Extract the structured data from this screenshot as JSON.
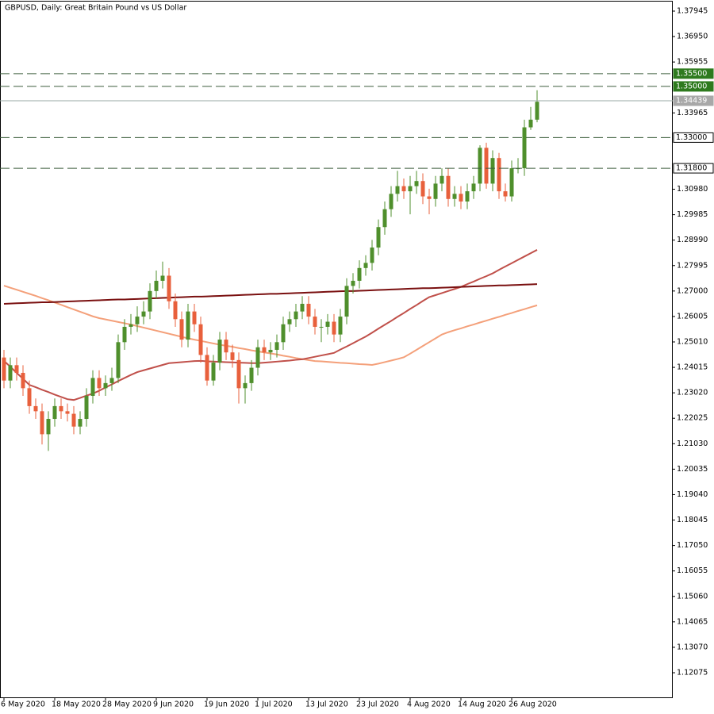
{
  "chart_data": {
    "type": "candlestick",
    "title": "GBPUSD, Daily:  Great Britain Pound vs US Dollar",
    "categories": [
      "6 May 2020",
      null,
      null,
      null,
      null,
      null,
      null,
      null,
      "18 May 2020",
      null,
      null,
      null,
      null,
      null,
      null,
      null,
      "28 May 2020",
      null,
      null,
      null,
      null,
      null,
      null,
      null,
      "9 Jun 2020",
      null,
      null,
      null,
      null,
      null,
      null,
      null,
      "19 Jun 2020",
      null,
      null,
      null,
      null,
      null,
      null,
      null,
      "1 Jul 2020",
      null,
      null,
      null,
      null,
      null,
      null,
      null,
      "13 Jul 2020",
      null,
      null,
      null,
      null,
      null,
      null,
      null,
      "23 Jul 2020",
      null,
      null,
      null,
      null,
      null,
      null,
      null,
      "4 Aug 2020",
      null,
      null,
      null,
      null,
      null,
      null,
      null,
      "14 Aug 2020",
      null,
      null,
      null,
      null,
      null,
      null,
      null,
      "26 Aug 2020",
      null,
      null,
      null,
      null
    ],
    "open": [
      1.244,
      1.235,
      1.241,
      1.238,
      1.232,
      1.225,
      1.223,
      1.214,
      1.22,
      1.225,
      1.223,
      1.222,
      1.217,
      1.22,
      1.229,
      1.236,
      1.232,
      1.234,
      1.236,
      1.25,
      1.256,
      1.257,
      1.26,
      1.262,
      1.27,
      1.274,
      1.276,
      1.266,
      1.259,
      1.251,
      1.262,
      1.257,
      1.245,
      1.235,
      1.242,
      1.251,
      1.246,
      1.243,
      1.232,
      1.234,
      1.24,
      1.248,
      1.246,
      1.247,
      1.25,
      1.257,
      1.259,
      1.262,
      1.265,
      1.26,
      1.256,
      1.256,
      1.258,
      1.253,
      1.26,
      1.272,
      1.274,
      1.279,
      1.281,
      1.287,
      1.295,
      1.302,
      1.308,
      1.311,
      1.309,
      1.311,
      1.313,
      1.307,
      1.306,
      1.312,
      1.315,
      1.306,
      1.308,
      1.305,
      1.309,
      1.312,
      1.326,
      1.312,
      1.322,
      1.309,
      1.307,
      1.318,
      1.318,
      1.334,
      1.337
    ],
    "high": [
      1.247,
      1.244,
      1.244,
      1.241,
      1.235,
      1.228,
      1.226,
      1.223,
      1.228,
      1.228,
      1.226,
      1.225,
      1.223,
      1.232,
      1.239,
      1.239,
      1.237,
      1.24,
      1.253,
      1.259,
      1.261,
      1.264,
      1.266,
      1.273,
      1.278,
      1.2815,
      1.279,
      1.269,
      1.262,
      1.265,
      1.265,
      1.26,
      1.248,
      1.245,
      1.254,
      1.254,
      1.249,
      1.246,
      1.237,
      1.243,
      1.251,
      1.251,
      1.25,
      1.253,
      1.26,
      1.262,
      1.265,
      1.268,
      1.268,
      1.263,
      1.259,
      1.261,
      1.261,
      1.263,
      1.275,
      1.277,
      1.282,
      1.284,
      1.29,
      1.298,
      1.305,
      1.311,
      1.317,
      1.314,
      1.315,
      1.317,
      1.316,
      1.31,
      1.315,
      1.318,
      1.318,
      1.311,
      1.311,
      1.312,
      1.315,
      1.327,
      1.328,
      1.325,
      1.324,
      1.312,
      1.321,
      1.322,
      1.337,
      1.342,
      1.3485
    ],
    "low": [
      1.232,
      1.232,
      1.235,
      1.229,
      1.222,
      1.22,
      1.21,
      1.2075,
      1.217,
      1.22,
      1.219,
      1.214,
      1.214,
      1.217,
      1.226,
      1.229,
      1.229,
      1.231,
      1.234,
      1.247,
      1.253,
      1.254,
      1.257,
      1.259,
      1.267,
      1.271,
      1.263,
      1.256,
      1.248,
      1.248,
      1.254,
      1.242,
      1.233,
      1.233,
      1.239,
      1.243,
      1.24,
      1.226,
      1.226,
      1.231,
      1.237,
      1.243,
      1.243,
      1.244,
      1.247,
      1.254,
      1.256,
      1.259,
      1.257,
      1.253,
      1.25,
      1.253,
      1.25,
      1.25,
      1.257,
      1.269,
      1.271,
      1.276,
      1.278,
      1.284,
      1.292,
      1.299,
      1.305,
      1.306,
      1.3,
      1.308,
      1.304,
      1.3,
      1.303,
      1.309,
      1.303,
      1.303,
      1.302,
      1.302,
      1.306,
      1.309,
      1.31,
      1.309,
      1.306,
      1.305,
      1.305,
      1.316,
      1.315,
      1.333,
      1.336
    ],
    "close": [
      1.235,
      1.241,
      1.238,
      1.232,
      1.225,
      1.223,
      1.214,
      1.22,
      1.225,
      1.223,
      1.222,
      1.217,
      1.22,
      1.229,
      1.236,
      1.232,
      1.234,
      1.236,
      1.25,
      1.256,
      1.257,
      1.26,
      1.262,
      1.27,
      1.274,
      1.276,
      1.266,
      1.259,
      1.251,
      1.262,
      1.257,
      1.245,
      1.235,
      1.242,
      1.251,
      1.246,
      1.243,
      1.232,
      1.234,
      1.24,
      1.248,
      1.246,
      1.247,
      1.25,
      1.257,
      1.259,
      1.262,
      1.265,
      1.26,
      1.256,
      1.256,
      1.258,
      1.253,
      1.26,
      1.272,
      1.274,
      1.279,
      1.281,
      1.287,
      1.295,
      1.302,
      1.308,
      1.311,
      1.309,
      1.311,
      1.313,
      1.307,
      1.306,
      1.312,
      1.315,
      1.306,
      1.308,
      1.305,
      1.309,
      1.312,
      1.326,
      1.312,
      1.322,
      1.309,
      1.307,
      1.318,
      1.318,
      1.334,
      1.337,
      1.344
    ],
    "up_color": "#4f8f2c",
    "down_color": "#e8603c",
    "overlays": [
      {
        "color": "#f4a07a",
        "values": [
          1.2721,
          1.2713,
          1.2705,
          1.2697,
          1.2689,
          1.2681,
          1.2672,
          1.2664,
          1.2655,
          1.2646,
          1.2637,
          1.2628,
          1.2619,
          1.261,
          1.2601,
          1.2594,
          1.2589,
          1.2584,
          1.2579,
          1.2574,
          1.2569,
          1.2563,
          1.2557,
          1.2551,
          1.2545,
          1.2539,
          1.2533,
          1.2527,
          1.2521,
          1.2515,
          1.251,
          1.2505,
          1.25,
          1.2495,
          1.249,
          1.2486,
          1.2482,
          1.2477,
          1.2473,
          1.2468,
          1.2464,
          1.246,
          1.2456,
          1.2452,
          1.2447,
          1.2443,
          1.2438,
          1.2434,
          1.243,
          1.2426,
          1.2425,
          1.2423,
          1.2421,
          1.2419,
          1.2418,
          1.2416,
          1.2414,
          1.2413,
          1.2411,
          1.2416,
          1.2422,
          1.2428,
          1.2434,
          1.2441,
          1.2455,
          1.247,
          1.2485,
          1.25,
          1.2515,
          1.253,
          1.2539,
          1.2547,
          1.2554,
          1.2562,
          1.2569,
          1.2577,
          1.2584,
          1.2592,
          1.2599,
          1.2607,
          1.2614,
          1.2622,
          1.2629,
          1.2637,
          1.2644
        ]
      },
      {
        "color": "#c0504a",
        "values": [
          1.2427,
          1.2404,
          1.238,
          1.2357,
          1.2333,
          1.2324,
          1.2314,
          1.2305,
          1.2295,
          1.2286,
          1.2277,
          1.2274,
          1.2282,
          1.2291,
          1.2299,
          1.231,
          1.2323,
          1.2335,
          1.2348,
          1.236,
          1.2372,
          1.2383,
          1.239,
          1.2397,
          1.2404,
          1.2411,
          1.2418,
          1.242,
          1.2422,
          1.2424,
          1.2426,
          1.2427,
          1.2425,
          1.2424,
          1.2423,
          1.2422,
          1.2421,
          1.242,
          1.2419,
          1.2418,
          1.2418,
          1.242,
          1.2422,
          1.2424,
          1.2426,
          1.2428,
          1.2431,
          1.2433,
          1.2438,
          1.2443,
          1.2448,
          1.2453,
          1.2458,
          1.2471,
          1.2483,
          1.2496,
          1.2509,
          1.2522,
          1.2537,
          1.2553,
          1.2568,
          1.2583,
          1.2599,
          1.2614,
          1.263,
          1.2645,
          1.2661,
          1.2676,
          1.2684,
          1.2692,
          1.27,
          1.2708,
          1.2716,
          1.2727,
          1.2737,
          1.2748,
          1.2758,
          1.2769,
          1.2783,
          1.2796,
          1.2809,
          1.2822,
          1.2835,
          1.2848,
          1.2861
        ]
      },
      {
        "color": "#7a1010",
        "values": [
          1.265,
          1.2651,
          1.2652,
          1.2653,
          1.2654,
          1.2655,
          1.2656,
          1.2656,
          1.2657,
          1.2658,
          1.2659,
          1.266,
          1.2661,
          1.2662,
          1.2663,
          1.2664,
          1.2665,
          1.2666,
          1.2667,
          1.2667,
          1.2668,
          1.2669,
          1.267,
          1.2671,
          1.2672,
          1.2673,
          1.2674,
          1.2675,
          1.2676,
          1.2677,
          1.2678,
          1.2678,
          1.2679,
          1.268,
          1.2681,
          1.2682,
          1.2683,
          1.2684,
          1.2685,
          1.2686,
          1.2687,
          1.2688,
          1.2689,
          1.2689,
          1.269,
          1.2691,
          1.2692,
          1.2693,
          1.2694,
          1.2695,
          1.2696,
          1.2697,
          1.2698,
          1.2699,
          1.27,
          1.27,
          1.2701,
          1.2702,
          1.2703,
          1.2704,
          1.2705,
          1.2706,
          1.2707,
          1.2708,
          1.2709,
          1.271,
          1.2711,
          1.2711,
          1.2712,
          1.2713,
          1.2714,
          1.2715,
          1.2716,
          1.2717,
          1.2718,
          1.2719,
          1.272,
          1.2721,
          1.2722,
          1.2722,
          1.2723,
          1.2724,
          1.2725,
          1.2726,
          1.2727
        ]
      }
    ],
    "levels": [
      {
        "value": 1.355,
        "label": "1.35500",
        "line_color": "#3c5e3c",
        "dashed": true,
        "label_fill": "#2e7a1e",
        "label_color": "#ffffff"
      },
      {
        "value": 1.35,
        "label": "1.35000",
        "line_color": "#3c5e3c",
        "dashed": true,
        "label_fill": "#2e7a1e",
        "label_color": "#ffffff"
      },
      {
        "value": 1.34439,
        "label": "1.34439",
        "line_color": "#9aaaa4",
        "dashed": false,
        "label_fill": "#a8a8a8",
        "label_color": "#ffffff"
      },
      {
        "value": 1.33,
        "label": "1.33000",
        "line_color": "#3c5e3c",
        "dashed": true,
        "label_fill": "#ffffff",
        "label_color": "#000000"
      },
      {
        "value": 1.318,
        "label": "1.31800",
        "line_color": "#3c5e3c",
        "dashed": true,
        "label_fill": "#ffffff",
        "label_color": "#000000"
      }
    ],
    "ylim": [
      1.11082,
      1.38379
    ],
    "yticks": [
      1.37945,
      {
        "value": 1.3695,
        "label": "1.36950"
      },
      1.35955,
      1.33965,
      {
        "value": 1.3098,
        "label": "1.30980"
      },
      1.29985,
      {
        "value": 1.2899,
        "label": "1.28990"
      },
      1.27995,
      {
        "value": 1.27,
        "label": "1.27000"
      },
      1.26005,
      {
        "value": 1.2501,
        "label": "1.25010"
      },
      1.24015,
      {
        "value": 1.2302,
        "label": "1.23020"
      },
      1.22025,
      {
        "value": 1.2103,
        "label": "1.21030"
      },
      1.20035,
      {
        "value": 1.1904,
        "label": "1.19040"
      },
      1.18045,
      {
        "value": 1.1705,
        "label": "1.17050"
      },
      1.16055,
      {
        "value": 1.1506,
        "label": "1.15060"
      },
      1.14065,
      {
        "value": 1.1307,
        "label": "1.13070"
      },
      1.12075
    ],
    "grid": false
  }
}
